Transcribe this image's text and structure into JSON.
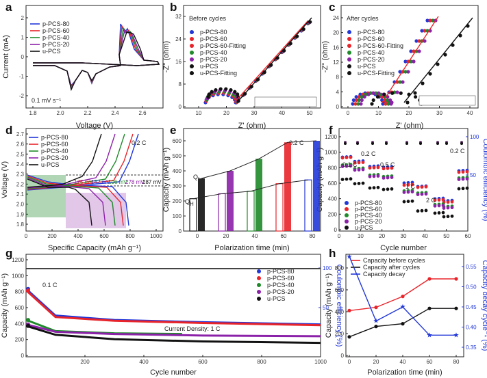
{
  "colors": {
    "p80": "#2137d8",
    "p60": "#e8242a",
    "p40": "#1f8a2a",
    "p20": "#8b21a8",
    "u": "#111111",
    "blue_axis": "#2137d8"
  },
  "panels": {
    "a": {
      "label": "a",
      "xlabel": "Voltage (V)",
      "ylabel": "Current (mA)",
      "note": "0.1 mV s⁻¹",
      "xticks": [
        "1.8",
        "2.0",
        "2.2",
        "2.4",
        "2.6"
      ],
      "yticks": [
        "-2",
        "-1",
        "0",
        "1",
        "2"
      ],
      "legend": [
        "p-PCS-80",
        "p-PCS-60",
        "p-PCS-40",
        "p-PCS-20",
        "u-PCS"
      ]
    },
    "b": {
      "label": "b",
      "title": "Before cycles",
      "xlabel": "Z' (ohm)",
      "ylabel": "-Z'' (ohm)",
      "xticks": [
        "10",
        "20",
        "30",
        "40",
        "50"
      ],
      "yticks": [
        "0",
        "8",
        "16",
        "24",
        "32"
      ],
      "legend": [
        "p-PCS-80",
        "p-PCS-60",
        "p-PCS-60-Fitting",
        "p-PCS-40",
        "p-PCS-20",
        "u-PCS",
        "u-PCS-Fitting"
      ]
    },
    "c": {
      "label": "c",
      "title": "After cycles",
      "xlabel": "Z' (ohm)",
      "ylabel": "-Z'' (ohm)",
      "xticks": [
        "0",
        "10",
        "20",
        "30",
        "40"
      ],
      "yticks": [
        "0",
        "4",
        "8",
        "12",
        "16",
        "20",
        "24"
      ],
      "legend": [
        "p-PCS-80",
        "p-PCS-60",
        "p-PCS-60-Fitting",
        "p-PCS-40",
        "p-PCS-20",
        "u-PCS",
        "u-PCS-Fitting"
      ]
    },
    "d": {
      "label": "d",
      "rate": "0.2 C",
      "xlabel": "Specific Capacity (mAh g⁻¹)",
      "ylabel": "Voltage (V)",
      "xticks": [
        "0",
        "200",
        "400",
        "600",
        "800",
        "1000"
      ],
      "yticks": [
        "1.8",
        "1.9",
        "2.0",
        "2.1",
        "2.2",
        "2.3",
        "2.4",
        "2.5",
        "2.6",
        "2.7"
      ],
      "legend": [
        "p-PCS-80",
        "p-PCS-60",
        "p-PCS-40",
        "p-PCS-20",
        "u-PCS"
      ],
      "polarization": [
        "175 mV",
        "182 mV",
        "196 mV",
        "278 mV",
        "287 mV"
      ]
    },
    "e": {
      "label": "e",
      "rate": "0.2 C",
      "xlabel": "Polarization time (min)",
      "ylabel": "Capacity (mAh g⁻¹)",
      "xticks": [
        "0",
        "20",
        "40",
        "60",
        "80"
      ],
      "yticks": [
        "0",
        "100",
        "200",
        "300",
        "400",
        "500",
        "600"
      ],
      "ql": "Q",
      "ql_sub": "L",
      "qh": "Q",
      "qh_sub": "H"
    },
    "f": {
      "label": "f",
      "xlabel": "Cycle number",
      "ylabel": "Capacity (mAh g⁻¹)",
      "ylabel2": "Coulombic efficiency (%)",
      "xticks": [
        "0",
        "10",
        "20",
        "30",
        "40",
        "50",
        "60"
      ],
      "yticks": [
        "0",
        "200",
        "400",
        "600",
        "800",
        "1000",
        "1200"
      ],
      "y2ticks": [
        "50",
        "100"
      ],
      "rates": [
        "0.1 C",
        "0.2 C",
        "0.5 C",
        "1 C",
        "2 C",
        "0.2 C"
      ],
      "legend": [
        "p-PCS-80",
        "p-PCS-60",
        "p-PCS-40",
        "p-PCS-20",
        "u-PCS"
      ]
    },
    "g": {
      "label": "g",
      "rate": "0.1 C",
      "xlabel": "Cycle number",
      "ylabel": "Capacity (mAh g⁻¹)",
      "ylabel2": "Coulombic efficiency (%)",
      "note": "Current Density: 1 C",
      "xticks": [
        "200",
        "400",
        "600",
        "800",
        "1000"
      ],
      "yticks": [
        "0",
        "200",
        "400",
        "600",
        "800",
        "1000",
        "1200"
      ],
      "y2ticks": [
        "50",
        "100"
      ],
      "legend": [
        "p-PCS-80",
        "p-PCS-60",
        "p-PCS-40",
        "p-PCS-20",
        "u-PCS"
      ]
    },
    "h": {
      "label": "h",
      "xlabel": "Polarization time (min)",
      "ylabel": "Capacity (mAh g⁻¹)",
      "ylabel2": "Capacity decay cycle⁻¹ (%)",
      "xticks": [
        "0",
        "20",
        "40",
        "60",
        "80"
      ],
      "yticks": [
        "0",
        "200",
        "400",
        "600",
        "800"
      ],
      "y2ticks": [
        "0.35",
        "0.40",
        "0.45",
        "0.50",
        "0.55"
      ],
      "legend": [
        "Capacity before cycles",
        "Capacity after cycles",
        "Capacity decay"
      ]
    }
  },
  "chart_data": [
    {
      "type": "line",
      "panel": "a",
      "xlim": [
        1.7,
        2.75
      ],
      "ylim": [
        -2.6,
        2.6
      ]
    },
    {
      "type": "scatter",
      "panel": "b",
      "xlim": [
        0,
        55
      ],
      "ylim": [
        0,
        35
      ]
    },
    {
      "type": "scatter",
      "panel": "c",
      "xlim": [
        -2,
        44
      ],
      "ylim": [
        0,
        28
      ]
    },
    {
      "type": "line",
      "panel": "d",
      "xlim": [
        0,
        1050
      ],
      "ylim": [
        1.8,
        2.7
      ]
    },
    {
      "type": "bar",
      "panel": "e",
      "categories": [
        "0",
        "20",
        "40",
        "60",
        "80"
      ],
      "series": [
        {
          "name": "Q_H",
          "values": [
            215,
            248,
            265,
            315,
            340
          ]
        },
        {
          "name": "Q_L",
          "values": [
            350,
            400,
            480,
            590,
            600
          ]
        }
      ],
      "ylim": [
        0,
        650
      ]
    },
    {
      "type": "scatter",
      "panel": "f",
      "xlim": [
        0,
        62
      ],
      "ylim": [
        0,
        1300
      ],
      "series": [
        {
          "name": "p-PCS-80",
          "values": [
            1010,
            950,
            880,
            870,
            650,
            600,
            430,
            400,
            820
          ]
        },
        {
          "name": "p-PCS-60",
          "values": [
            1000,
            930,
            860,
            850,
            620,
            590,
            410,
            380,
            800
          ]
        },
        {
          "name": "p-PCS-40",
          "values": [
            900,
            850,
            760,
            740,
            540,
            510,
            350,
            320,
            720
          ]
        },
        {
          "name": "p-PCS-20",
          "values": [
            880,
            830,
            740,
            720,
            520,
            490,
            330,
            300,
            700
          ]
        },
        {
          "name": "u-PCS",
          "values": [
            700,
            640,
            580,
            560,
            390,
            260,
            230,
            180,
            570
          ]
        }
      ]
    },
    {
      "type": "scatter",
      "panel": "g",
      "xlim": [
        0,
        1000
      ],
      "ylim": [
        0,
        1300
      ],
      "series": [
        {
          "name": "p-PCS-80",
          "x": [
            1,
            100,
            300,
            600,
            1000
          ],
          "values": [
            900,
            540,
            480,
            450,
            420
          ]
        },
        {
          "name": "p-PCS-60",
          "x": [
            1,
            100,
            300,
            600,
            1000
          ],
          "values": [
            880,
            520,
            470,
            440,
            410
          ]
        },
        {
          "name": "p-PCS-40",
          "x": [
            1,
            100,
            300,
            530
          ],
          "values": [
            480,
            330,
            300,
            290
          ]
        },
        {
          "name": "p-PCS-20",
          "x": [
            1,
            100,
            300,
            600,
            1000
          ],
          "values": [
            420,
            320,
            290,
            270,
            260
          ]
        },
        {
          "name": "u-PCS",
          "x": [
            1,
            100,
            300,
            600,
            1000
          ],
          "values": [
            400,
            280,
            220,
            190,
            170
          ]
        }
      ]
    },
    {
      "type": "line",
      "panel": "h",
      "categories": [
        "0",
        "20",
        "40",
        "60",
        "80"
      ],
      "series": [
        {
          "name": "Capacity before cycles",
          "values": [
            410,
            440,
            540,
            700,
            700
          ]
        },
        {
          "name": "Capacity after cycles",
          "values": [
            170,
            265,
            290,
            430,
            430
          ]
        },
        {
          "name": "Capacity decay",
          "values": [
            0.575,
            0.415,
            0.45,
            0.38,
            0.38
          ]
        }
      ],
      "ylim": [
        0,
        850
      ],
      "y2lim": [
        0.33,
        0.58
      ]
    }
  ]
}
